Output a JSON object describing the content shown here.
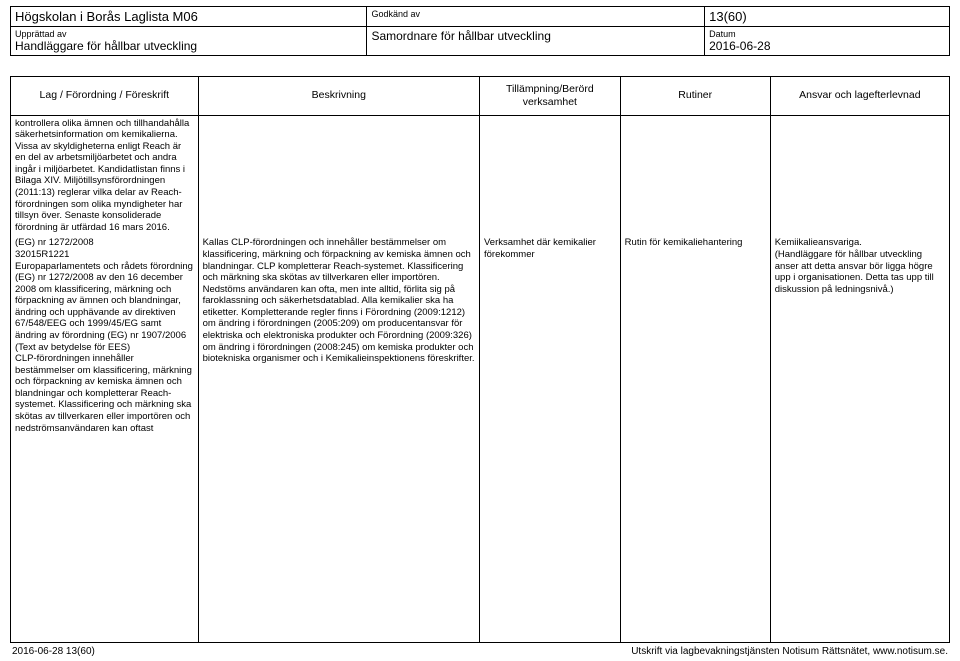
{
  "header": {
    "title": "Högskolan i Borås Laglista M06",
    "approved_label": "Godkänd av",
    "page_ref": "13(60)",
    "created_label": "Upprättad av",
    "created_value": "Handläggare för hållbar utveckling",
    "approved_value": "Samordnare för hållbar utveckling",
    "date_label": "Datum",
    "date_value": "2016-06-28"
  },
  "columns": {
    "c1": "Lag / Förordning / Föreskrift",
    "c2": "Beskrivning",
    "c3": "Tillämpning/Berörd verksamhet",
    "c4": "Rutiner",
    "c5": "Ansvar och lagefterlevnad"
  },
  "row1": {
    "c1": "kontrollera olika ämnen och tillhandahålla säkerhetsinformation om kemikalierna. Vissa av skyldigheterna enligt Reach är en del av arbetsmiljöarbetet och andra ingår i miljöarbetet. Kandidatlistan finns i Bilaga XIV. Miljötillsynsförordningen (2011:13) reglerar vilka delar av Reach-förordningen som olika myndigheter har tillsyn över. Senaste konsoliderade förordning är utfärdad 16 mars 2016."
  },
  "row2": {
    "c1": "(EG) nr 1272/2008\n32015R1221\nEuropaparlamentets och rådets förordning (EG) nr 1272/2008 av den 16 december 2008 om klassificering, märkning och förpackning av ämnen och blandningar, ändring och upphävande av direktiven 67/548/EEG och 1999/45/EG samt ändring av förordning (EG) nr 1907/2006 (Text av betydelse för EES)\nCLP-förordningen innehåller bestämmelser om klassificering, märkning och förpackning av kemiska ämnen och blandningar och kompletterar Reach-systemet. Klassificering och märkning ska skötas av tillverkaren eller importören och nedströmsanvändaren kan oftast",
    "c2": "Kallas CLP-förordningen och innehåller bestämmelser om klassificering, märkning och förpackning av kemiska ämnen och blandningar. CLP kompletterar Reach-systemet. Klassificering och märkning ska skötas av tillverkaren eller importören. Nedstöms användaren kan ofta, men inte alltid, förlita sig på faroklassning och säkerhetsdatablad. Alla kemikalier ska ha etiketter. Kompletterande regler finns i Förordning (2009:1212) om ändring i förordningen (2005:209) om producentansvar för elektriska och elektroniska produkter och Förordning (2009:326) om ändring i förordningen (2008:245) om kemiska produkter och biotekniska organismer och i Kemikalieinspektionens föreskrifter.",
    "c3": "Verksamhet där kemikalier förekommer",
    "c4": "Rutin för kemikaliehantering",
    "c5": "Kemiikalieansvariga.\n(Handläggare för hållbar utveckling anser att detta ansvar bör ligga högre upp i organisationen. Detta tas upp till diskussion på ledningsnivå.)"
  },
  "footer": {
    "left": "2016-06-28   13(60)",
    "right": "Utskrift via lagbevakningstjänsten Notisum Rättsnätet, www.notisum.se."
  }
}
